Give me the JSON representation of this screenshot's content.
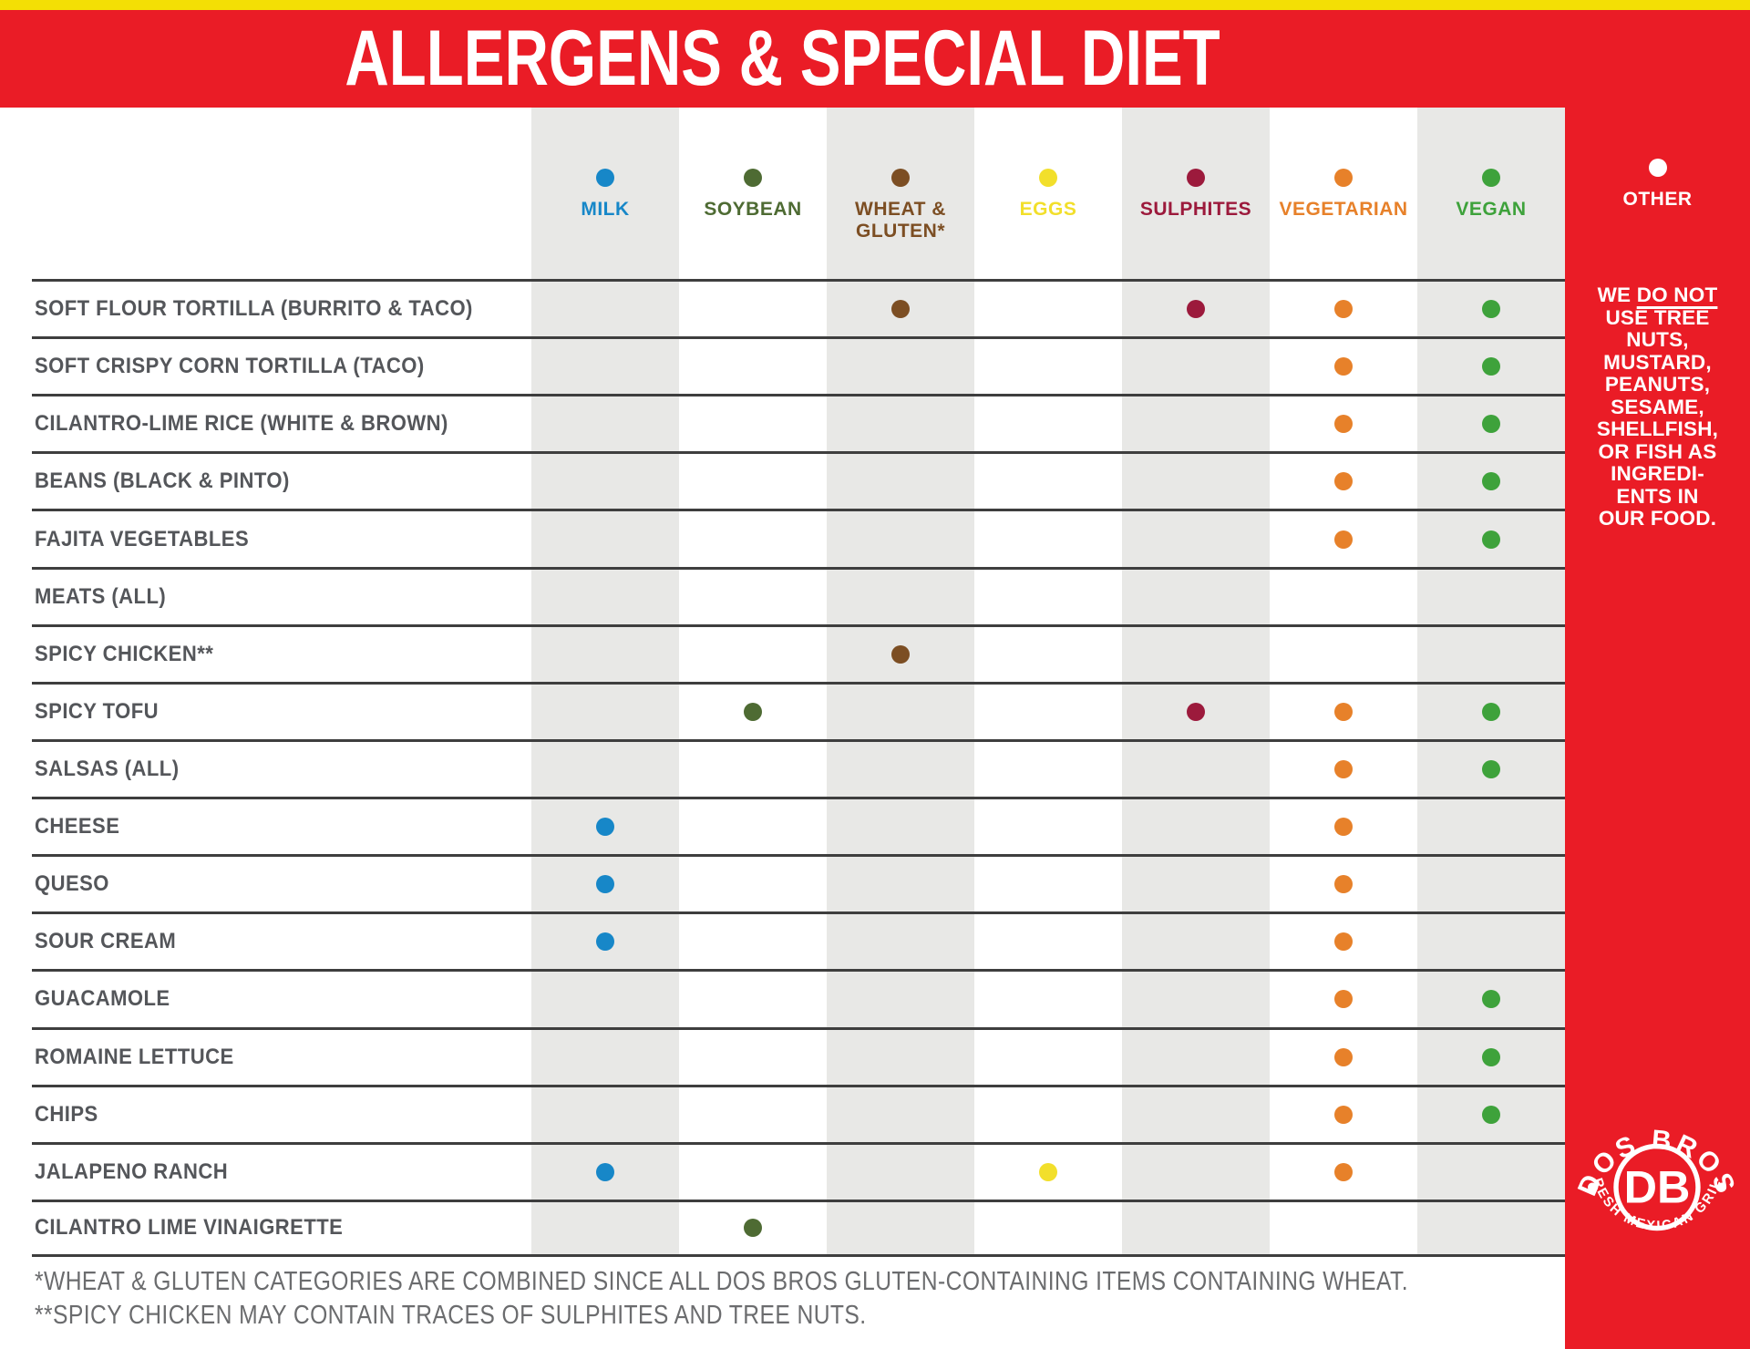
{
  "banner": {
    "title": "ALLERGENS & SPECIAL DIET"
  },
  "colors": {
    "red": "#EA1C26",
    "yellow_strip": "#F3DF05",
    "stripe_gray": "#E8E8E6",
    "row_line": "#3E3E3E",
    "row_label": "#54565A",
    "footnote_gray": "#6B6C6E",
    "white": "#FFFFFF"
  },
  "table": {
    "columns": [
      {
        "key": "milk",
        "label": "MILK",
        "color": "#1787C8",
        "shaded": true
      },
      {
        "key": "soybean",
        "label": "SOYBEAN",
        "color": "#4E6B33",
        "shaded": false
      },
      {
        "key": "wheat",
        "label": "WHEAT & GLUTEN*",
        "color": "#7C4E23",
        "shaded": true
      },
      {
        "key": "eggs",
        "label": "EGGS",
        "color": "#F2DF2B",
        "shaded": false
      },
      {
        "key": "sulphites",
        "label": "SULPHITES",
        "color": "#9C1A3C",
        "shaded": true
      },
      {
        "key": "vegetarian",
        "label": "VEGETARIAN",
        "color": "#E7812A",
        "shaded": false
      },
      {
        "key": "vegan",
        "label": "VEGAN",
        "color": "#3EA23B",
        "shaded": true
      }
    ],
    "rows": [
      {
        "label": "SOFT FLOUR TORTILLA (BURRITO & TACO)",
        "marks": [
          "wheat",
          "sulphites",
          "vegetarian",
          "vegan"
        ]
      },
      {
        "label": "SOFT CRISPY CORN TORTILLA (TACO)",
        "marks": [
          "vegetarian",
          "vegan"
        ]
      },
      {
        "label": "CILANTRO-LIME RICE (WHITE & BROWN)",
        "marks": [
          "vegetarian",
          "vegan"
        ]
      },
      {
        "label": "BEANS (BLACK & PINTO)",
        "marks": [
          "vegetarian",
          "vegan"
        ]
      },
      {
        "label": "FAJITA VEGETABLES",
        "marks": [
          "vegetarian",
          "vegan"
        ]
      },
      {
        "label": "MEATS (ALL)",
        "marks": []
      },
      {
        "label": "SPICY CHICKEN**",
        "marks": [
          "wheat"
        ]
      },
      {
        "label": "SPICY TOFU",
        "marks": [
          "soybean",
          "sulphites",
          "vegetarian",
          "vegan"
        ]
      },
      {
        "label": "SALSAS (ALL)",
        "marks": [
          "vegetarian",
          "vegan"
        ]
      },
      {
        "label": "CHEESE",
        "marks": [
          "milk",
          "vegetarian"
        ]
      },
      {
        "label": "QUESO",
        "marks": [
          "milk",
          "vegetarian"
        ]
      },
      {
        "label": "SOUR CREAM",
        "marks": [
          "milk",
          "vegetarian"
        ]
      },
      {
        "label": "GUACAMOLE",
        "marks": [
          "vegetarian",
          "vegan"
        ]
      },
      {
        "label": "ROMAINE LETTUCE",
        "marks": [
          "vegetarian",
          "vegan"
        ]
      },
      {
        "label": "CHIPS",
        "marks": [
          "vegetarian",
          "vegan"
        ]
      },
      {
        "label": "JALAPENO RANCH",
        "marks": [
          "milk",
          "eggs",
          "vegetarian"
        ]
      },
      {
        "label": "CILANTRO LIME VINAIGRETTE",
        "marks": [
          "soybean"
        ]
      }
    ]
  },
  "sidebar": {
    "header": "OTHER",
    "dot_color": "#FFFFFF",
    "note_lines": [
      [
        {
          "t": "WE "
        },
        {
          "t": "DO NOT",
          "u": true
        }
      ],
      [
        {
          "t": "USE TREE"
        }
      ],
      [
        {
          "t": "NUTS,"
        }
      ],
      [
        {
          "t": "MUSTARD,"
        }
      ],
      [
        {
          "t": "PEANUTS,"
        }
      ],
      [
        {
          "t": "SESAME,"
        }
      ],
      [
        {
          "t": "SHELLFISH,"
        }
      ],
      [
        {
          "t": "OR FISH AS"
        }
      ],
      [
        {
          "t": "INGREDI-"
        }
      ],
      [
        {
          "t": "ENTS IN"
        }
      ],
      [
        {
          "t": "OUR FOOD."
        }
      ]
    ]
  },
  "logo": {
    "top_text": "DOS BROS",
    "center_text": "DB",
    "bottom_text": "FRESH MEXICAN GRILL"
  },
  "footnotes": [
    "*WHEAT & GLUTEN CATEGORIES ARE COMBINED SINCE ALL DOS BROS GLUTEN-CONTAINING ITEMS CONTAINING WHEAT.",
    "**SPICY CHICKEN MAY CONTAIN TRACES OF SULPHITES AND TREE NUTS."
  ]
}
